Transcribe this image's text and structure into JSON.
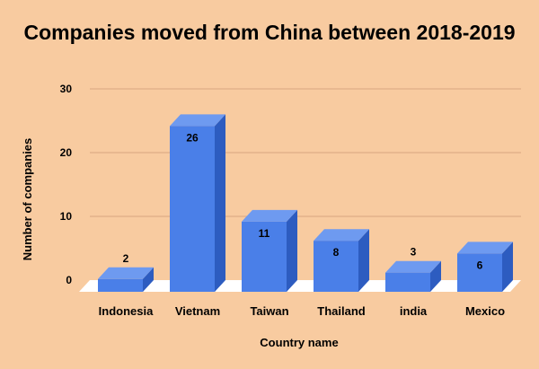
{
  "chart_data": {
    "type": "bar",
    "title": "Companies moved from China between 2018-2019",
    "xlabel": "Country name",
    "ylabel": "Number of companies",
    "categories": [
      "Indonesia",
      "Vietnam",
      "Taiwan",
      "Thailand",
      "india",
      "Mexico"
    ],
    "values": [
      2,
      26,
      11,
      8,
      3,
      6
    ],
    "y_ticks": [
      "0",
      "10",
      "20",
      "30"
    ],
    "ylim": [
      0,
      30
    ],
    "grid": true,
    "legend": "none",
    "bar_color": "#4a7fe8",
    "bar_side_color": "#2d5cc0",
    "bar_top_color": "#6e9af0",
    "floor_color": "#ffffff",
    "grid_color": "#d9a57f"
  }
}
